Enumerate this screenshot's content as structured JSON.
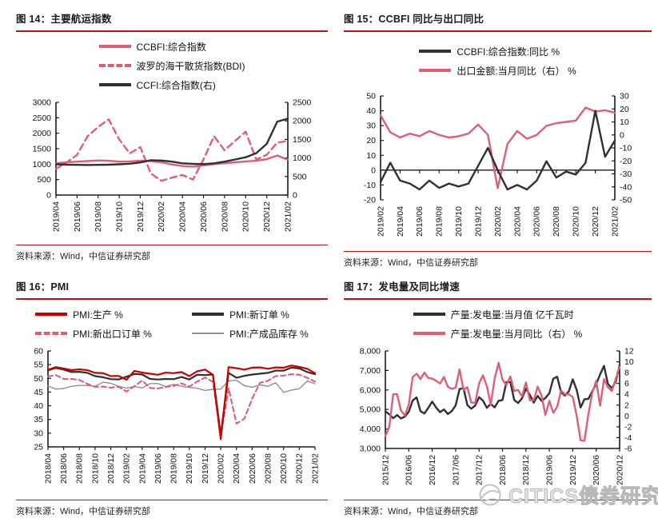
{
  "page": {
    "watermark_text": "CITICS债券研究",
    "source_text": "资料来源：Wind，中信证券研究部"
  },
  "colors": {
    "pink": "#de5e74",
    "dark": "#303030",
    "red": "#cc0000",
    "gray": "#8f8f8f",
    "rule": "#aa1a1a",
    "axis": "#1a1a1a"
  },
  "panels": [
    {
      "title": "图 14：主要航运指数",
      "source": "资料来源：Wind，中信证券研究部",
      "legend": [
        {
          "label": "CCBFI:综合指数",
          "color": "pink",
          "dash": false,
          "thickness": 4
        },
        {
          "label": "波罗的海干散货指数(BDI)",
          "color": "pink",
          "dash": true,
          "thickness": 4
        },
        {
          "label": "CCFI:综合指数(右)",
          "color": "dark",
          "dash": false,
          "thickness": 4
        }
      ]
    },
    {
      "title": "图 15：CCBFI 同比与出口同比",
      "source": "资料来源：Wind，中信证券研究部",
      "legend": [
        {
          "label": "CCBFI:综合指数:同比 %",
          "color": "dark",
          "dash": false,
          "thickness": 4
        },
        {
          "label": "出口金额:当月同比（右） %",
          "color": "pink",
          "dash": false,
          "thickness": 4
        }
      ]
    },
    {
      "title": "图 16：PMI",
      "source": "资料来源：Wind，中信证券研究部",
      "legend": [
        {
          "label": "PMI:生产 %",
          "color": "red",
          "dash": false,
          "thickness": 4
        },
        {
          "label": "PMI:新订单 %",
          "color": "dark",
          "dash": false,
          "thickness": 4
        },
        {
          "label": "PMI:新出口订单 %",
          "color": "pink",
          "dash": true,
          "thickness": 4
        },
        {
          "label": "PMI:产成品库存 %",
          "color": "gray",
          "dash": false,
          "thickness": 2
        }
      ]
    },
    {
      "title": "图 17：发电量及同比增速",
      "source": "资料来源：Wind，中信证券研究部",
      "legend": [
        {
          "label": "产量:发电量:当月值 亿千瓦时",
          "color": "dark",
          "dash": false,
          "thickness": 4
        },
        {
          "label": "产量:发电量:当月同比（右） %",
          "color": "pink",
          "dash": false,
          "thickness": 4
        }
      ]
    }
  ],
  "chart_data": [
    {
      "type": "line",
      "title": "主要航运指数",
      "x_count": 23,
      "x_tick_indices": [
        0,
        2,
        4,
        6,
        8,
        10,
        12,
        14,
        16,
        18,
        20,
        22
      ],
      "x_tick_labels": [
        "2019/04",
        "2019/06",
        "2019/08",
        "2019/10",
        "2019/12",
        "2020/02",
        "2020/04",
        "2020/06",
        "2020/08",
        "2020/10",
        "2020/12",
        "2021/02"
      ],
      "baseline": 0,
      "left_axis": {
        "range": [
          0,
          3000
        ],
        "values": [
          0,
          500,
          1000,
          1500,
          2000,
          2500,
          3000
        ],
        "labels": [
          "0",
          "500",
          "1000",
          "1500",
          "2000",
          "2500",
          "3000"
        ]
      },
      "right_axis": {
        "range": [
          0,
          2500
        ],
        "values": [
          0,
          500,
          1000,
          1500,
          2000,
          2500
        ],
        "labels": [
          "0",
          "500",
          "1000",
          "1500",
          "2000",
          "2500"
        ]
      },
      "series": [
        {
          "name": "CCBFI:综合指数",
          "axis": "left",
          "color": "pink",
          "width": 2.4,
          "dash": null,
          "values": [
            1030,
            1060,
            1080,
            1100,
            1120,
            1110,
            1080,
            1090,
            1110,
            1100,
            1060,
            990,
            940,
            920,
            960,
            1000,
            1030,
            1060,
            1090,
            1110,
            1160,
            1280,
            1140
          ]
        },
        {
          "name": "波罗的海干散货指数(BDI)",
          "axis": "left",
          "color": "pink",
          "width": 2.4,
          "dash": "8,5",
          "values": [
            850,
            1050,
            1300,
            1900,
            2200,
            2450,
            1800,
            1350,
            1550,
            700,
            460,
            560,
            650,
            500,
            1150,
            1900,
            1450,
            1750,
            2050,
            1150,
            1300,
            1700,
            1750
          ]
        },
        {
          "name": "CCFI:综合指数(右)",
          "axis": "right",
          "color": "dark",
          "width": 2.4,
          "dash": null,
          "values": [
            830,
            820,
            815,
            810,
            815,
            820,
            830,
            845,
            880,
            940,
            930,
            900,
            855,
            840,
            835,
            855,
            900,
            960,
            1020,
            1130,
            1380,
            1980,
            2060
          ]
        }
      ]
    },
    {
      "type": "line",
      "title": "CCBFI 同比与出口同比",
      "x_count": 25,
      "x_tick_indices": [
        0,
        2,
        4,
        6,
        8,
        10,
        12,
        14,
        16,
        18,
        20,
        22,
        24
      ],
      "x_tick_labels": [
        "2019/02",
        "2019/04",
        "2019/06",
        "2019/08",
        "2019/10",
        "2019/12",
        "2020/02",
        "2020/04",
        "2020/06",
        "2020/08",
        "2020/10",
        "2020/12",
        "2021/02"
      ],
      "baseline": 0,
      "left_axis": {
        "range": [
          -20,
          50
        ],
        "values": [
          -20,
          -10,
          0,
          10,
          20,
          30,
          40,
          50
        ],
        "labels": [
          "-20",
          "-10",
          "0",
          "10",
          "20",
          "30",
          "40",
          "50"
        ]
      },
      "right_axis": {
        "range": [
          -50,
          30
        ],
        "values": [
          -50,
          -40,
          -30,
          -20,
          -10,
          0,
          10,
          20,
          30
        ],
        "labels": [
          "-50",
          "-40",
          "-30",
          "-20",
          "-10",
          "0",
          "10",
          "20",
          "30"
        ]
      },
      "series": [
        {
          "name": "出口金额:当月同比（右） %",
          "axis": "right",
          "color": "pink",
          "width": 2.4,
          "dash": null,
          "values": [
            15,
            2,
            -2,
            1,
            -1,
            3,
            0,
            -2,
            -1,
            1,
            8,
            0,
            -41,
            -7,
            3,
            -3,
            0,
            7,
            9,
            10,
            11,
            21,
            18,
            19,
            17
          ]
        },
        {
          "name": "CCBFI:综合指数:同比 %",
          "axis": "left",
          "color": "dark",
          "width": 2.4,
          "dash": null,
          "values": [
            -8,
            5,
            -7,
            -9,
            -13,
            -7,
            -12,
            -9,
            -11,
            -9,
            3,
            15,
            0,
            -13,
            -10,
            -13,
            -7,
            6,
            -5,
            -1,
            -3,
            5,
            40,
            9,
            20
          ]
        }
      ]
    },
    {
      "type": "line",
      "title": "PMI",
      "x_count": 35,
      "x_tick_indices": [
        0,
        2,
        4,
        6,
        8,
        10,
        12,
        14,
        16,
        18,
        20,
        22,
        24,
        26,
        28,
        30,
        32,
        34
      ],
      "x_tick_labels": [
        "2018/04",
        "2018/06",
        "2018/08",
        "2018/10",
        "2018/12",
        "2019/02",
        "2019/04",
        "2019/06",
        "2019/08",
        "2019/10",
        "2019/12",
        "2020/02",
        "2020/04",
        "2020/06",
        "2020/08",
        "2020/10",
        "2020/12",
        "2021/02"
      ],
      "baseline": 25,
      "left_axis": {
        "range": [
          25,
          60
        ],
        "values": [
          25,
          30,
          35,
          40,
          45,
          50,
          55,
          60
        ],
        "labels": [
          "25",
          "30",
          "35",
          "40",
          "45",
          "50",
          "55",
          "60"
        ]
      },
      "right_axis": null,
      "series": [
        {
          "name": "PMI:产成品库存 %",
          "axis": "left",
          "color": "gray",
          "width": 1.4,
          "dash": null,
          "values": [
            47.2,
            46.1,
            46.3,
            47.1,
            47.4,
            47.4,
            47.1,
            48.6,
            48.2,
            47.1,
            46.4,
            47.0,
            46.5,
            48.1,
            48.1,
            47.0,
            47.8,
            47.1,
            46.7,
            46.4,
            45.6,
            46.0,
            46.1,
            49.1,
            49.3,
            47.3,
            46.8,
            47.6,
            47.1,
            48.4,
            44.9,
            45.7,
            46.2,
            49.0,
            48.0
          ]
        },
        {
          "name": "PMI:新出口订单 %",
          "axis": "left",
          "color": "pink",
          "width": 2.1,
          "dash": "6,4",
          "values": [
            50.7,
            51.2,
            49.8,
            49.8,
            49.4,
            48.0,
            46.9,
            47.0,
            46.6,
            46.9,
            45.2,
            47.1,
            49.2,
            46.5,
            46.3,
            46.9,
            47.2,
            48.2,
            47.0,
            48.8,
            50.3,
            48.7,
            28.7,
            46.4,
            33.5,
            35.3,
            42.6,
            48.4,
            49.1,
            50.8,
            51.0,
            51.5,
            51.3,
            50.2,
            48.8
          ]
        },
        {
          "name": "PMI:新订单 %",
          "axis": "left",
          "color": "dark",
          "width": 2.2,
          "dash": null,
          "values": [
            52.9,
            53.8,
            53.2,
            52.3,
            52.4,
            52.0,
            50.8,
            50.4,
            49.7,
            49.6,
            50.6,
            51.6,
            51.4,
            49.8,
            49.6,
            49.8,
            49.7,
            50.5,
            49.6,
            51.3,
            51.2,
            51.4,
            29.3,
            52.0,
            50.2,
            50.9,
            51.4,
            51.7,
            52.0,
            52.8,
            52.8,
            53.9,
            53.6,
            52.3,
            51.5
          ]
        },
        {
          "name": "PMI:生产 %",
          "axis": "left",
          "color": "red",
          "width": 2.2,
          "dash": null,
          "values": [
            53.1,
            54.1,
            53.6,
            53.0,
            53.3,
            53.0,
            52.0,
            51.9,
            50.8,
            50.9,
            49.5,
            52.7,
            52.1,
            51.7,
            51.3,
            52.1,
            51.9,
            52.3,
            50.8,
            52.6,
            53.2,
            51.3,
            27.8,
            54.1,
            53.7,
            53.2,
            53.9,
            54.0,
            53.5,
            54.0,
            53.9,
            54.7,
            54.2,
            53.5,
            51.9
          ]
        }
      ]
    },
    {
      "type": "line",
      "title": "发电量及同比增速",
      "x_count": 61,
      "x_tick_indices": [
        0,
        6,
        12,
        18,
        24,
        30,
        36,
        42,
        48,
        54,
        60
      ],
      "x_tick_labels": [
        "2015/12",
        "2016/06",
        "2016/12",
        "2017/06",
        "2017/12",
        "2018/06",
        "2018/12",
        "2019/06",
        "2019/12",
        "2020/06",
        "2020/12"
      ],
      "baseline": 3000,
      "left_axis": {
        "range": [
          3000,
          8000
        ],
        "values": [
          3000,
          4000,
          5000,
          6000,
          7000,
          8000
        ],
        "labels": [
          "3,000",
          "4,000",
          "5,000",
          "6,000",
          "7,000",
          "8,000"
        ]
      },
      "right_axis": {
        "range": [
          -6,
          12
        ],
        "values": [
          -6,
          -4,
          -2,
          0,
          2,
          4,
          6,
          8,
          10,
          12
        ],
        "labels": [
          "-6",
          "-4",
          "-2",
          "0",
          "2",
          "4",
          "6",
          "8",
          "10",
          "12"
        ]
      },
      "series": [
        {
          "name": "产量:发电量:当月值 亿千瓦时",
          "axis": "left",
          "color": "dark",
          "width": 2.4,
          "dash": null,
          "values": [
            4900,
            4750,
            4550,
            4712,
            4535,
            4636,
            4885,
            5459,
            5617,
            4913,
            4790,
            5084,
            5402,
            5100,
            4860,
            4998,
            4767,
            4913,
            5203,
            6047,
            6094,
            5220,
            5038,
            5196,
            5628,
            5450,
            5080,
            5283,
            5107,
            5443,
            5483,
            6400,
            6404,
            5483,
            5330,
            5571,
            6060,
            5750,
            5350,
            5698,
            5440,
            5589,
            5834,
            6573,
            6682,
            5886,
            5714,
            5934,
            6544,
            6000,
            5100,
            5525,
            5543,
            5932,
            6304,
            6801,
            7238,
            6315,
            6094,
            6419,
            7277
          ]
        },
        {
          "name": "产量:发电量:当月同比（右） %",
          "axis": "right",
          "color": "pink",
          "width": 2.4,
          "dash": null,
          "values": [
            -3.7,
            -2.0,
            4.0,
            4.0,
            1.0,
            0.1,
            2.1,
            7.2,
            7.8,
            6.8,
            8.0,
            7.0,
            6.9,
            6.5,
            6.0,
            7.2,
            5.4,
            5.0,
            5.2,
            8.6,
            4.8,
            5.3,
            2.5,
            2.4,
            6.0,
            7.5,
            5.5,
            2.1,
            6.9,
            9.8,
            6.7,
            5.7,
            7.3,
            4.6,
            4.8,
            3.6,
            6.2,
            2.9,
            2.9,
            5.4,
            3.8,
            0.2,
            2.8,
            0.6,
            1.7,
            4.7,
            4.0,
            4.0,
            3.5,
            0.0,
            -4.5,
            -4.6,
            0.3,
            4.3,
            6.5,
            1.9,
            6.8,
            5.3,
            4.6,
            6.8,
            9.1
          ]
        }
      ]
    }
  ]
}
